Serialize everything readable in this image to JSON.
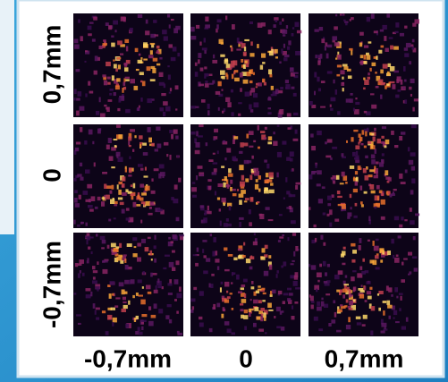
{
  "row_labels": [
    "0,7mm",
    "0",
    "-0,7mm"
  ],
  "column_labels": [
    "-0,7mm",
    "0",
    "0,7mm"
  ]
}
